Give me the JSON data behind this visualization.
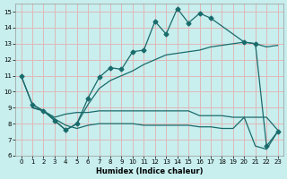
{
  "xlabel": "Humidex (Indice chaleur)",
  "xlim": [
    -0.5,
    23.5
  ],
  "ylim": [
    6,
    15.5
  ],
  "yticks": [
    6,
    7,
    8,
    9,
    10,
    11,
    12,
    13,
    14,
    15
  ],
  "xticks": [
    0,
    1,
    2,
    3,
    4,
    5,
    6,
    7,
    8,
    9,
    10,
    11,
    12,
    13,
    14,
    15,
    16,
    17,
    18,
    19,
    20,
    21,
    22,
    23
  ],
  "bg_color": "#c8eeee",
  "grid_color": "#e0b8b8",
  "line_color": "#1a6b6b",
  "jagged_x": [
    0,
    1,
    2,
    3,
    4,
    5,
    6,
    7,
    8,
    9,
    10,
    11,
    12,
    13,
    14,
    15,
    16,
    17,
    20,
    21,
    22,
    23
  ],
  "jagged_y": [
    11.0,
    9.2,
    8.8,
    8.2,
    7.6,
    8.0,
    9.6,
    10.9,
    11.5,
    11.4,
    12.5,
    12.6,
    14.4,
    13.6,
    15.2,
    14.3,
    14.9,
    14.6,
    13.1,
    13.0,
    6.6,
    7.5
  ],
  "trend_x": [
    0,
    1,
    2,
    3,
    4,
    5,
    6,
    7,
    8,
    9,
    10,
    11,
    12,
    13,
    14,
    15,
    16,
    17,
    20,
    21,
    22,
    23
  ],
  "trend_y": [
    11.0,
    9.2,
    8.8,
    8.2,
    7.6,
    8.0,
    9.2,
    10.2,
    10.7,
    11.0,
    11.3,
    11.7,
    12.0,
    12.3,
    12.4,
    12.5,
    12.6,
    12.8,
    13.1,
    13.0,
    12.8,
    12.9
  ],
  "flat1_x": [
    1,
    2,
    3,
    4,
    5,
    6,
    7,
    8,
    9,
    10,
    11,
    12,
    13,
    14,
    15,
    16,
    17,
    18,
    19,
    20,
    21,
    22,
    23
  ],
  "flat1_y": [
    9.0,
    8.8,
    8.4,
    8.6,
    8.7,
    8.7,
    8.8,
    8.8,
    8.8,
    8.8,
    8.8,
    8.8,
    8.8,
    8.8,
    8.8,
    8.5,
    8.5,
    8.5,
    8.4,
    8.4,
    8.4,
    8.4,
    7.6
  ],
  "flat2_x": [
    1,
    2,
    3,
    4,
    5,
    6,
    7,
    8,
    9,
    10,
    11,
    12,
    13,
    14,
    15,
    16,
    17,
    18,
    19,
    20,
    21,
    22,
    23
  ],
  "flat2_y": [
    9.0,
    8.8,
    8.3,
    7.9,
    7.7,
    7.9,
    8.0,
    8.0,
    8.0,
    8.0,
    7.9,
    7.9,
    7.9,
    7.9,
    7.9,
    7.8,
    7.8,
    7.7,
    7.7,
    8.4,
    6.6,
    6.4,
    7.5
  ]
}
